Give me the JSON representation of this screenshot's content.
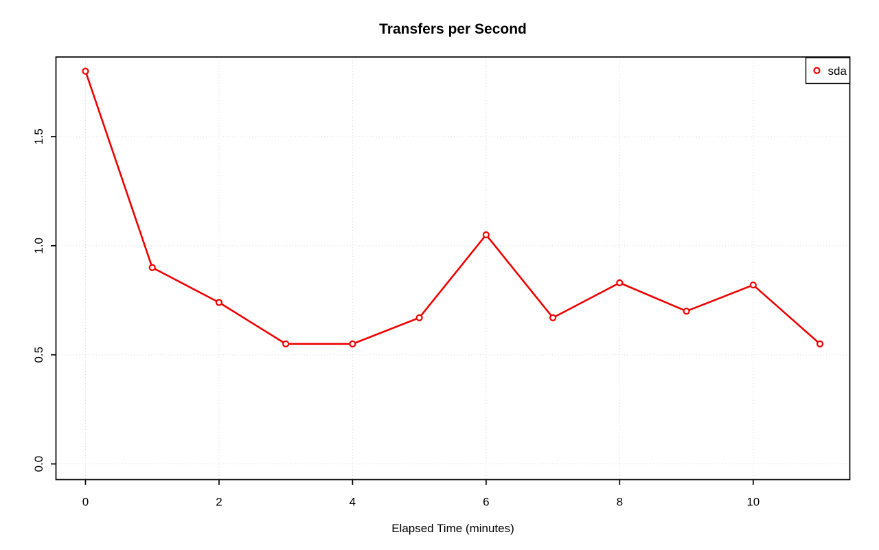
{
  "title": "Transfers per Second",
  "xlabel": "Elapsed Time (minutes)",
  "legend": {
    "position": "topright",
    "items": [
      {
        "label": "sda",
        "marker": "open-circle",
        "color": "#ee0000"
      }
    ]
  },
  "colors": {
    "series": "#ee0000",
    "grid": "#d2d2d2",
    "axis": "#000000",
    "background": "#ffffff",
    "marker_fill": "#ffffff"
  },
  "chart_data": {
    "type": "line",
    "title": "Transfers per Second",
    "xlabel": "Elapsed Time (minutes)",
    "ylabel": "",
    "x": [
      0,
      1,
      2,
      3,
      4,
      5,
      6,
      7,
      8,
      9,
      10,
      11
    ],
    "series": [
      {
        "name": "sda",
        "color": "#ee0000",
        "values": [
          1.8,
          0.9,
          0.74,
          0.55,
          0.55,
          0.67,
          1.05,
          0.67,
          0.83,
          0.7,
          0.82,
          0.55
        ]
      }
    ],
    "xticks": [
      0,
      2,
      4,
      6,
      8,
      10
    ],
    "xtick_labels": [
      "0",
      "2",
      "4",
      "6",
      "8",
      "10"
    ],
    "yticks": [
      0.0,
      0.5,
      1.0,
      1.5
    ],
    "ytick_labels": [
      "0.0",
      "0.5",
      "1.0",
      "1.5"
    ],
    "xlim": [
      -0.442,
      11.447
    ],
    "ylim": [
      -0.072,
      1.865
    ],
    "grid": true,
    "grid_style": "dotted",
    "legend_position": "topright",
    "marker": "open-circle",
    "line_type": "b"
  }
}
